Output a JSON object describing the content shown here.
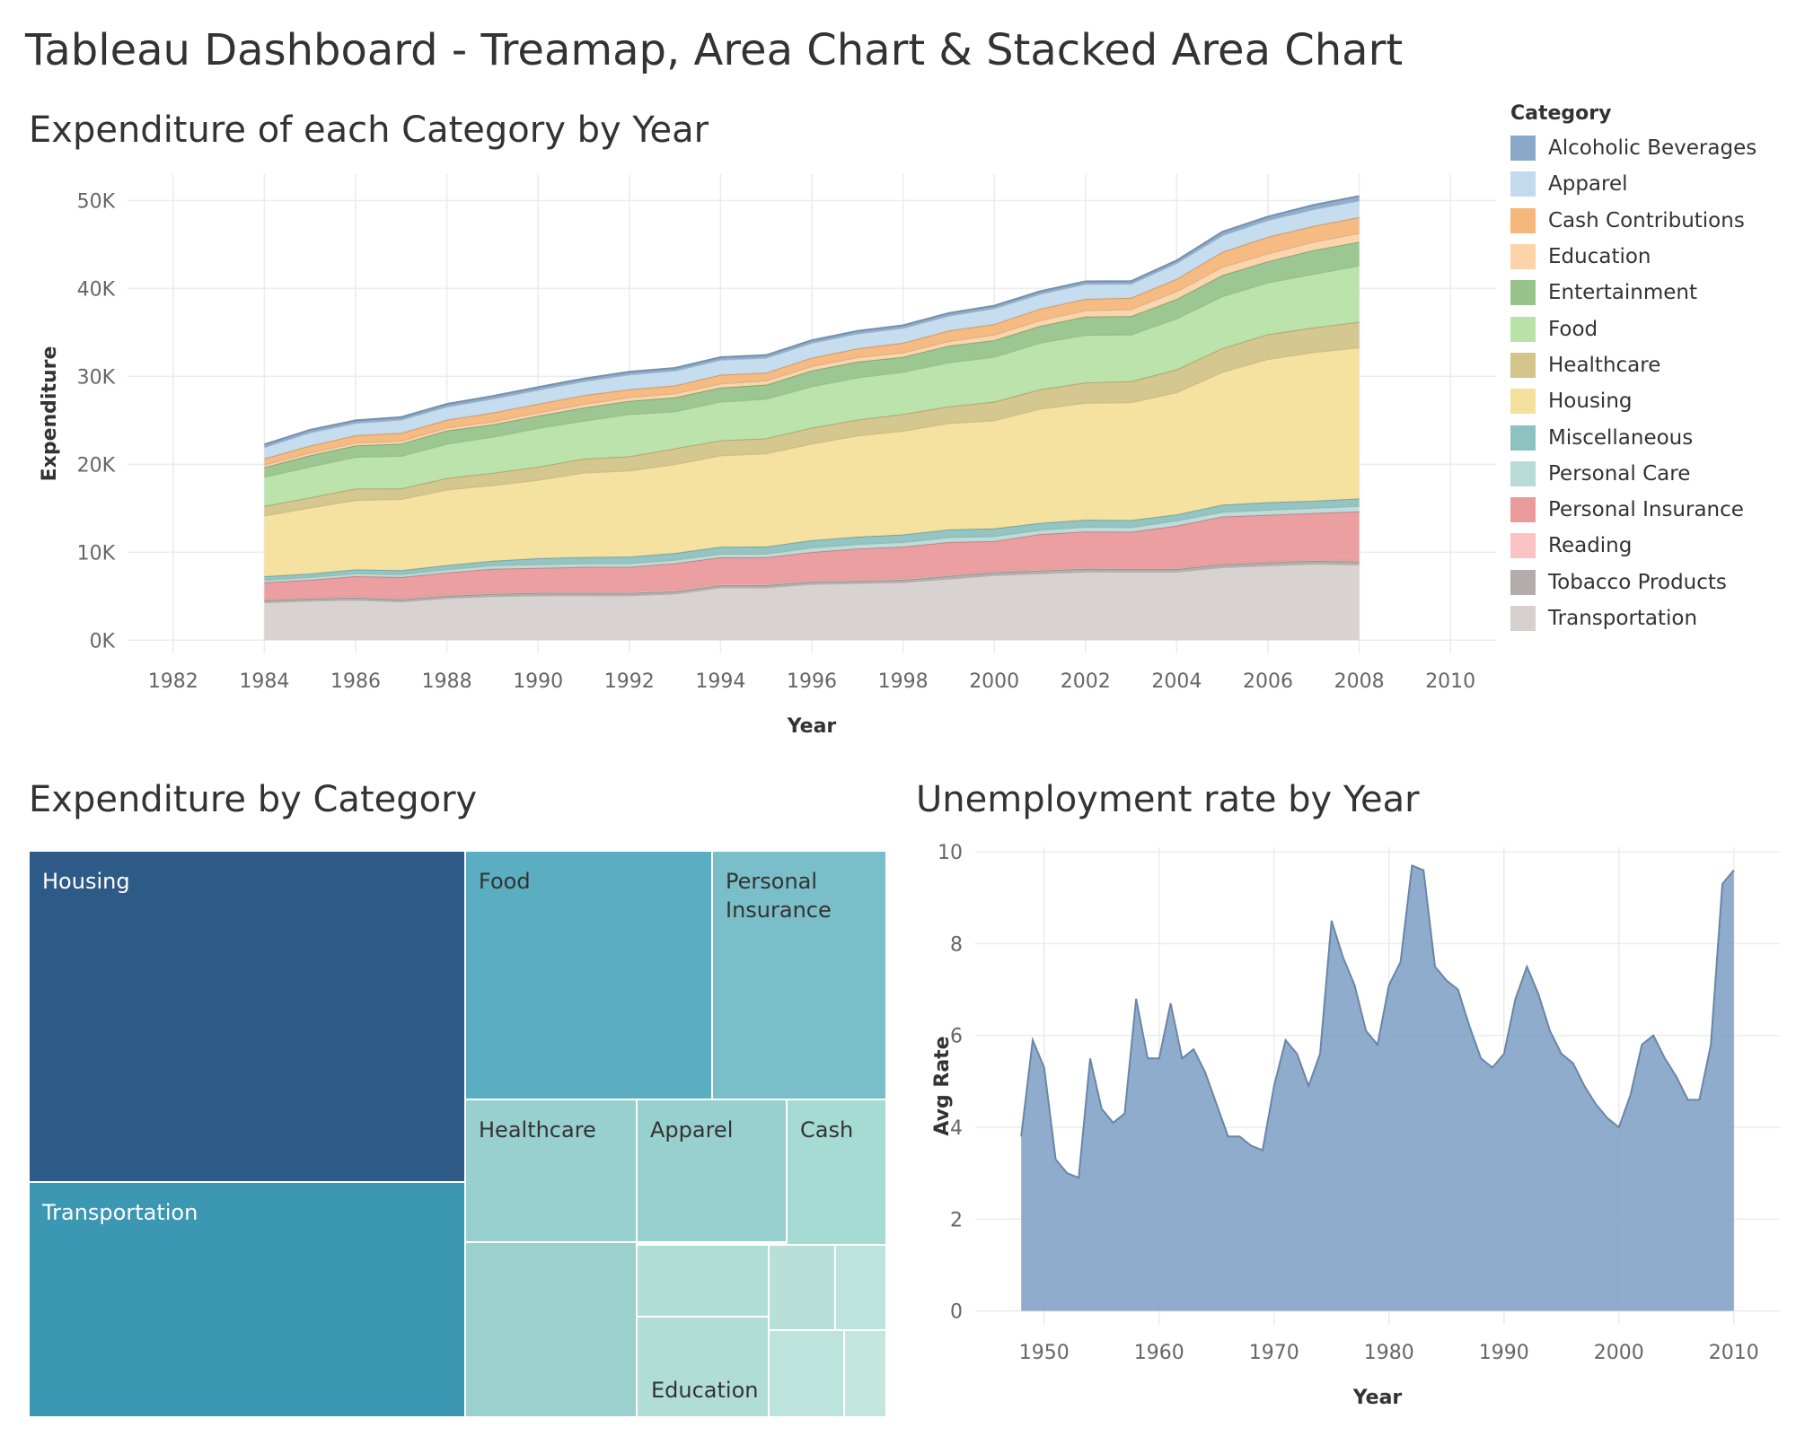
{
  "dashboard_title": "Tableau Dashboard - Treamap, Area Chart & Stacked Area Chart",
  "legend": {
    "title": "Category",
    "items": [
      {
        "label": "Alcoholic Beverages",
        "color": "#8aa9c9"
      },
      {
        "label": "Apparel",
        "color": "#c3daee"
      },
      {
        "label": "Cash Contributions",
        "color": "#f5b77c"
      },
      {
        "label": "Education",
        "color": "#fdd3a9"
      },
      {
        "label": "Entertainment",
        "color": "#98c48c"
      },
      {
        "label": "Food",
        "color": "#b9e2a8"
      },
      {
        "label": "Healthcare",
        "color": "#d3c48a"
      },
      {
        "label": "Housing",
        "color": "#f4e09b"
      },
      {
        "label": "Miscellaneous",
        "color": "#8ec2c0"
      },
      {
        "label": "Personal Care",
        "color": "#b8dbd8"
      },
      {
        "label": "Personal Insurance",
        "color": "#eb9a9c"
      },
      {
        "label": "Reading",
        "color": "#fbc3c1"
      },
      {
        "label": "Tobacco Products",
        "color": "#b3acab"
      },
      {
        "label": "Transportation",
        "color": "#d6d1cf"
      }
    ]
  },
  "chart_data": [
    {
      "type": "area",
      "stacked": true,
      "title": "Expenditure of each Category by Year",
      "xlabel": "Year",
      "ylabel": "Expenditure",
      "xlim": [
        1981,
        2011
      ],
      "ylim": [
        -1500,
        53000
      ],
      "x_ticks": [
        "1982",
        "1984",
        "1986",
        "1988",
        "1990",
        "1992",
        "1994",
        "1996",
        "1998",
        "2000",
        "2002",
        "2004",
        "2006",
        "2008",
        "2010"
      ],
      "y_ticks": [
        "0K",
        "10K",
        "20K",
        "30K",
        "40K",
        "50K"
      ],
      "x": [
        1984,
        1985,
        1986,
        1987,
        1988,
        1989,
        1990,
        1991,
        1992,
        1993,
        1994,
        1995,
        1996,
        1997,
        1998,
        1999,
        2000,
        2001,
        2002,
        2003,
        2004,
        2005,
        2006,
        2007,
        2008
      ],
      "series": [
        {
          "name": "Transportation",
          "values": [
            4300,
            4500,
            4600,
            4400,
            4800,
            5000,
            5100,
            5100,
            5100,
            5300,
            6000,
            6000,
            6400,
            6500,
            6600,
            7000,
            7400,
            7600,
            7800,
            7800,
            7800,
            8300,
            8500,
            8700,
            8600
          ]
        },
        {
          "name": "Tobacco Products",
          "values": [
            230,
            230,
            240,
            240,
            240,
            260,
            270,
            270,
            280,
            270,
            260,
            270,
            260,
            260,
            270,
            300,
            320,
            310,
            320,
            290,
            290,
            320,
            330,
            330,
            320
          ]
        },
        {
          "name": "Reading",
          "values": [
            130,
            140,
            140,
            140,
            150,
            160,
            150,
            160,
            160,
            170,
            160,
            160,
            160,
            160,
            160,
            160,
            150,
            140,
            140,
            130,
            130,
            130,
            120,
            120,
            120
          ]
        },
        {
          "name": "Personal Insurance",
          "values": [
            1900,
            2000,
            2300,
            2400,
            2500,
            2700,
            2700,
            2800,
            2800,
            3000,
            3000,
            3000,
            3200,
            3500,
            3600,
            3700,
            3400,
            4000,
            4100,
            4100,
            4800,
            5300,
            5300,
            5300,
            5600
          ]
        },
        {
          "name": "Personal Care",
          "values": [
            300,
            300,
            310,
            320,
            360,
            400,
            400,
            400,
            400,
            400,
            400,
            400,
            520,
            500,
            520,
            540,
            560,
            490,
            530,
            530,
            580,
            540,
            580,
            590,
            620
          ]
        },
        {
          "name": "Miscellaneous",
          "values": [
            400,
            400,
            450,
            450,
            480,
            500,
            700,
            720,
            760,
            770,
            800,
            820,
            820,
            850,
            860,
            880,
            880,
            780,
            810,
            800,
            690,
            810,
            850,
            810,
            840
          ]
        },
        {
          "name": "Housing",
          "values": [
            6900,
            7500,
            7900,
            8100,
            8600,
            8600,
            8900,
            9600,
            9800,
            10100,
            10400,
            10600,
            11000,
            11500,
            11800,
            12100,
            12300,
            13000,
            13300,
            13400,
            13900,
            15100,
            16300,
            16900,
            17200
          ]
        },
        {
          "name": "Healthcare",
          "values": [
            1100,
            1150,
            1300,
            1200,
            1300,
            1400,
            1500,
            1600,
            1600,
            1800,
            1700,
            1700,
            1800,
            1800,
            1900,
            1900,
            2100,
            2200,
            2300,
            2400,
            2600,
            2700,
            2800,
            2800,
            2900
          ]
        },
        {
          "name": "Food",
          "values": [
            3300,
            3500,
            3600,
            3700,
            3900,
            4100,
            4400,
            4300,
            4800,
            4200,
            4400,
            4500,
            4700,
            4800,
            4800,
            5000,
            5100,
            5300,
            5400,
            5300,
            5800,
            5900,
            5900,
            6100,
            6400
          ]
        },
        {
          "name": "Entertainment",
          "values": [
            1100,
            1300,
            1300,
            1400,
            1500,
            1400,
            1400,
            1500,
            1500,
            1600,
            1600,
            1600,
            1800,
            1800,
            1700,
            1900,
            1900,
            1900,
            2100,
            2100,
            2200,
            2400,
            2400,
            2700,
            2700
          ]
        },
        {
          "name": "Education",
          "values": [
            300,
            300,
            310,
            320,
            330,
            340,
            350,
            400,
            420,
            450,
            460,
            470,
            500,
            500,
            500,
            520,
            630,
            650,
            710,
            780,
            900,
            940,
            890,
            950,
            1000
          ]
        },
        {
          "name": "Cash Contributions",
          "values": [
            700,
            800,
            850,
            900,
            900,
            1000,
            1000,
            1000,
            900,
            900,
            1000,
            900,
            950,
            1000,
            1100,
            1200,
            1200,
            1300,
            1300,
            1300,
            1400,
            1700,
            1900,
            1800,
            1800
          ]
        },
        {
          "name": "Apparel",
          "values": [
            1300,
            1500,
            1400,
            1500,
            1500,
            1600,
            1600,
            1600,
            1700,
            1700,
            1700,
            1700,
            1700,
            1700,
            1700,
            1700,
            1800,
            1700,
            1700,
            1600,
            1800,
            1900,
            1900,
            1900,
            1900
          ]
        },
        {
          "name": "Alcoholic Beverages",
          "values": [
            300,
            300,
            300,
            300,
            300,
            300,
            300,
            300,
            300,
            300,
            300,
            300,
            300,
            300,
            300,
            300,
            300,
            300,
            300,
            300,
            300,
            400,
            400,
            500,
            500
          ]
        }
      ]
    },
    {
      "type": "treemap",
      "title": "Expenditure by Category",
      "tiles": [
        {
          "name": "Housing",
          "label": "Housing",
          "color": "#2e5a87"
        },
        {
          "name": "Transportation",
          "label": "Transportation",
          "color": "#3c97b3"
        },
        {
          "name": "Food",
          "label": "Food",
          "color": "#5badc1"
        },
        {
          "name": "Personal Insurance",
          "label": "Personal Insurance",
          "color": "#79bec8"
        },
        {
          "name": "Healthcare",
          "label": "Healthcare",
          "color": "#98d0cf"
        },
        {
          "name": "Apparel",
          "label": "Apparel",
          "color": "#98d0cf"
        },
        {
          "name": "Cash Contributions",
          "label": "Cash",
          "color": "#a6dbd3"
        },
        {
          "name": "Entertainment",
          "label": "",
          "color": "#9ad0cd"
        },
        {
          "name": "Miscellaneous",
          "label": "",
          "color": "#b1ddd7"
        },
        {
          "name": "Education",
          "label": "Education",
          "color": "#b1ddd7"
        },
        {
          "name": "Personal Care",
          "label": "",
          "color": "#b8e0d9"
        },
        {
          "name": "Alcoholic Beverages",
          "label": "",
          "color": "#bce3dc"
        },
        {
          "name": "Tobacco Products",
          "label": "",
          "color": "#bde4dc"
        },
        {
          "name": "Reading",
          "label": "",
          "color": "#c3e7df"
        }
      ]
    },
    {
      "type": "area",
      "title": "Unemployment rate by Year",
      "xlabel": "Year",
      "ylabel": "Avg Rate",
      "color": "#7d9ec4",
      "xlim": [
        1944,
        2014
      ],
      "ylim": [
        -0.3,
        10.1
      ],
      "x_ticks": [
        "1950",
        "1960",
        "1970",
        "1980",
        "1990",
        "2000",
        "2010"
      ],
      "y_ticks": [
        "0",
        "2",
        "4",
        "6",
        "8",
        "10"
      ],
      "x": [
        1948,
        1949,
        1950,
        1951,
        1952,
        1953,
        1954,
        1955,
        1956,
        1957,
        1958,
        1959,
        1960,
        1961,
        1962,
        1963,
        1964,
        1965,
        1966,
        1967,
        1968,
        1969,
        1970,
        1971,
        1972,
        1973,
        1974,
        1975,
        1976,
        1977,
        1978,
        1979,
        1980,
        1981,
        1982,
        1983,
        1984,
        1985,
        1986,
        1987,
        1988,
        1989,
        1990,
        1991,
        1992,
        1993,
        1994,
        1995,
        1996,
        1997,
        1998,
        1999,
        2000,
        2001,
        2002,
        2003,
        2004,
        2005,
        2006,
        2007,
        2008,
        2009,
        2010
      ],
      "values": [
        3.8,
        5.9,
        5.3,
        3.3,
        3.0,
        2.9,
        5.5,
        4.4,
        4.1,
        4.3,
        6.8,
        5.5,
        5.5,
        6.7,
        5.5,
        5.7,
        5.2,
        4.5,
        3.8,
        3.8,
        3.6,
        3.5,
        4.9,
        5.9,
        5.6,
        4.9,
        5.6,
        8.5,
        7.7,
        7.1,
        6.1,
        5.8,
        7.1,
        7.6,
        9.7,
        9.6,
        7.5,
        7.2,
        7.0,
        6.2,
        5.5,
        5.3,
        5.6,
        6.8,
        7.5,
        6.9,
        6.1,
        5.6,
        5.4,
        4.9,
        4.5,
        4.2,
        4.0,
        4.7,
        5.8,
        6.0,
        5.5,
        5.1,
        4.6,
        4.6,
        5.8,
        9.3,
        9.6
      ]
    }
  ]
}
